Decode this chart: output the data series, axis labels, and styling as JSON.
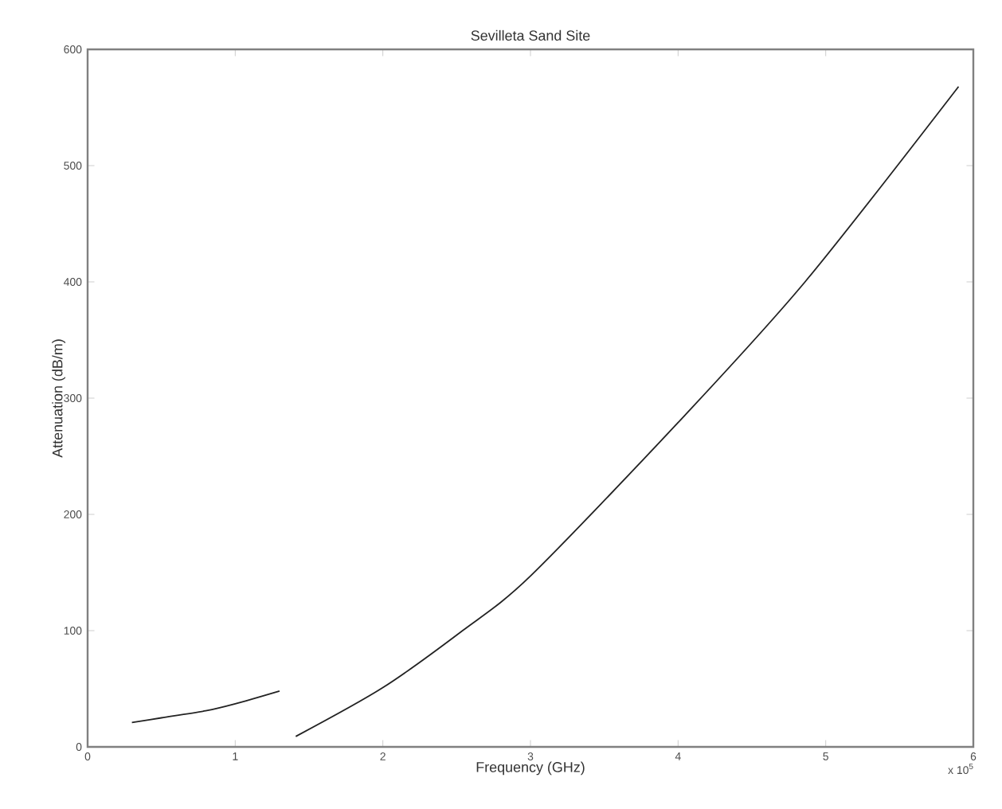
{
  "chart_data": {
    "type": "line",
    "title": "Sevilleta Sand Site",
    "xlabel": "Frequency (GHz)",
    "ylabel": "Attenuation (dB/m)",
    "annotations": [
      "x 10$^{5}$"
    ],
    "xlim": [
      0,
      6
    ],
    "xticks": [
      0,
      1,
      2,
      3,
      4,
      5,
      6
    ],
    "ylim": [
      0,
      600
    ],
    "yticks": [
      0,
      100,
      200,
      300,
      400,
      500,
      600
    ],
    "series": [
      {
        "color": "#222222",
        "x": [
          0.3,
          0.5,
          0.8,
          1.0,
          1.3
        ],
        "values": [
          21,
          25,
          31,
          37,
          48
        ]
      },
      {
        "color": "#222222",
        "x": [
          1.41,
          2,
          2.54,
          3,
          4,
          4.86,
          5.9
        ],
        "values": [
          9,
          51,
          100,
          147,
          279,
          400,
          568
        ]
      }
    ]
  }
}
